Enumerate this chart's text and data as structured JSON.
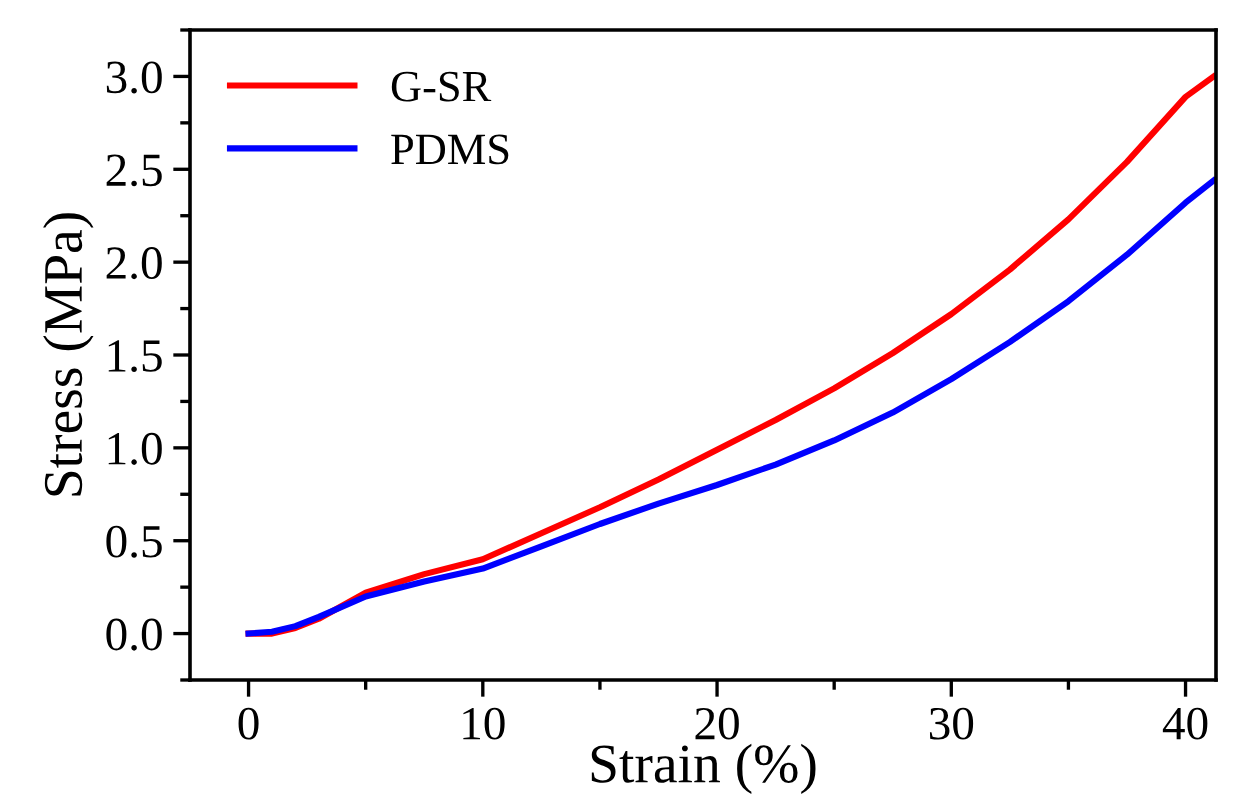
{
  "chart_data": {
    "type": "line",
    "xlabel": "Strain (%)",
    "ylabel": "Stress (MPa)",
    "xlim": [
      -2.5,
      41.3
    ],
    "ylim": [
      -0.25,
      3.25
    ],
    "xticks": [
      0,
      10,
      20,
      30,
      40
    ],
    "yticks": [
      {
        "value": 0,
        "label": "0.0"
      },
      0.5,
      {
        "value": 1,
        "label": "1.0"
      },
      1.5,
      {
        "value": 2,
        "label": "2.0"
      },
      2.5,
      {
        "value": 3,
        "label": "3.0"
      }
    ],
    "legend": "top left",
    "grid": false,
    "marker": "none",
    "line_style": "solid",
    "series": [
      {
        "name": "G-SR",
        "color": "#ff0000",
        "x": [
          0,
          1,
          2,
          3,
          5,
          7.5,
          10,
          12.5,
          15,
          17.5,
          20,
          22.5,
          25,
          27.5,
          30,
          32.5,
          35,
          37.5,
          40,
          41.2
        ],
        "values": [
          0,
          0,
          0.03,
          0.08,
          0.22,
          0.32,
          0.4,
          0.54,
          0.68,
          0.83,
          0.99,
          1.15,
          1.32,
          1.51,
          1.72,
          1.96,
          2.23,
          2.54,
          2.89,
          3.0
        ]
      },
      {
        "name": "PDMS",
        "color": "#0000ff",
        "x": [
          0,
          1,
          2,
          3,
          5,
          7.5,
          10,
          12.5,
          15,
          17.5,
          20,
          22.5,
          25,
          27.5,
          30,
          32.5,
          35,
          37.5,
          40,
          41.2
        ],
        "values": [
          0,
          0.01,
          0.04,
          0.09,
          0.2,
          0.28,
          0.35,
          0.47,
          0.59,
          0.7,
          0.8,
          0.91,
          1.04,
          1.19,
          1.37,
          1.57,
          1.79,
          2.04,
          2.32,
          2.44
        ]
      }
    ]
  }
}
